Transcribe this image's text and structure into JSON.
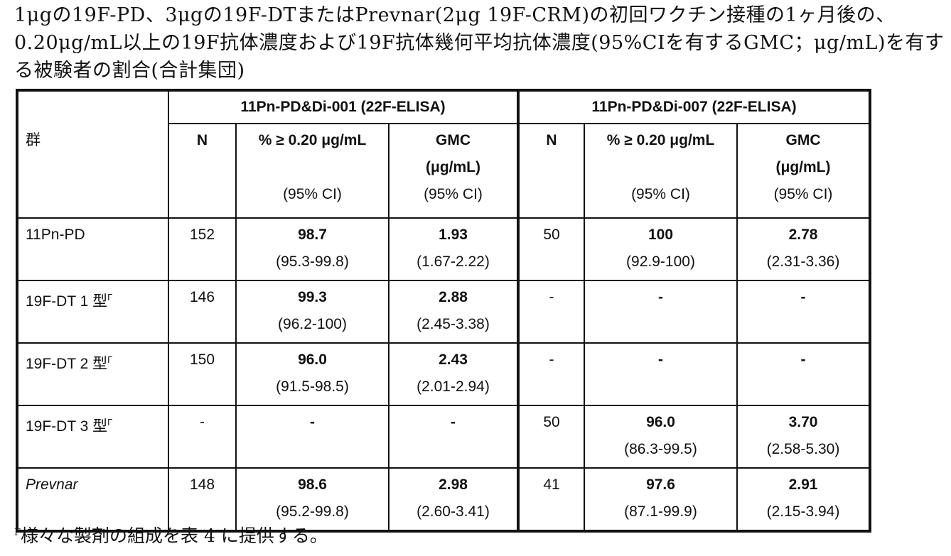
{
  "title": "1μgの19F-PD、3μgの19F-DTまたはPrevnar(2μg 19F-CRM)の初回ワクチン接種の1ヶ月後の、0.20μg/mL以上の19F抗体濃度および19F抗体幾何平均抗体濃度(95%CIを有するGMC；μg/mL)を有する被験者の割合(合計集団)",
  "table": {
    "group_header": "群",
    "study1": "11Pn-PD&Di-001 (22F-ELISA)",
    "study2": "11Pn-PD&Di-007 (22F-ELISA)",
    "col_n": "N",
    "col_pct": "% ≥ 0.20 μg/mL",
    "col_gmc": "GMC",
    "col_gmc_unit": "(μg/mL)",
    "col_ci": "(95% CI)",
    "footnote_mark": "Γ",
    "rows": [
      {
        "group": "11Pn-PD",
        "mark": "",
        "italic": false,
        "n1": "152",
        "p1": "98.7",
        "p1ci": "(95.3-99.8)",
        "g1": "1.93",
        "g1ci": "(1.67-2.22)",
        "n2": "50",
        "p2": "100",
        "p2ci": "(92.9-100)",
        "g2": "2.78",
        "g2ci": "(2.31-3.36)"
      },
      {
        "group": "19F-DT 1 型",
        "mark": "Γ",
        "italic": false,
        "n1": "146",
        "p1": "99.3",
        "p1ci": "(96.2-100)",
        "g1": "2.88",
        "g1ci": "(2.45-3.38)",
        "n2": "-",
        "p2": "-",
        "p2ci": "",
        "g2": "-",
        "g2ci": ""
      },
      {
        "group": "19F-DT 2 型",
        "mark": "Γ",
        "italic": false,
        "n1": "150",
        "p1": "96.0",
        "p1ci": "(91.5-98.5)",
        "g1": "2.43",
        "g1ci": "(2.01-2.94)",
        "n2": "-",
        "p2": "-",
        "p2ci": "",
        "g2": "-",
        "g2ci": ""
      },
      {
        "group": "19F-DT 3 型",
        "mark": "Γ",
        "italic": false,
        "n1": "-",
        "p1": "-",
        "p1ci": "",
        "g1": "-",
        "g1ci": "",
        "n2": "50",
        "p2": "96.0",
        "p2ci": "(86.3-99.5)",
        "g2": "3.70",
        "g2ci": "(2.58-5.30)"
      },
      {
        "group": "Prevnar",
        "mark": "",
        "italic": true,
        "n1": "148",
        "p1": "98.6",
        "p1ci": "(95.2-99.8)",
        "g1": "2.98",
        "g1ci": "(2.60-3.41)",
        "n2": "41",
        "p2": "97.6",
        "p2ci": "(87.1-99.9)",
        "g2": "2.91",
        "g2ci": "(2.15-3.94)"
      }
    ]
  },
  "footnote": {
    "mark": "Γ",
    "text": "様々な製剤の組成を表 4 に提供する。"
  }
}
